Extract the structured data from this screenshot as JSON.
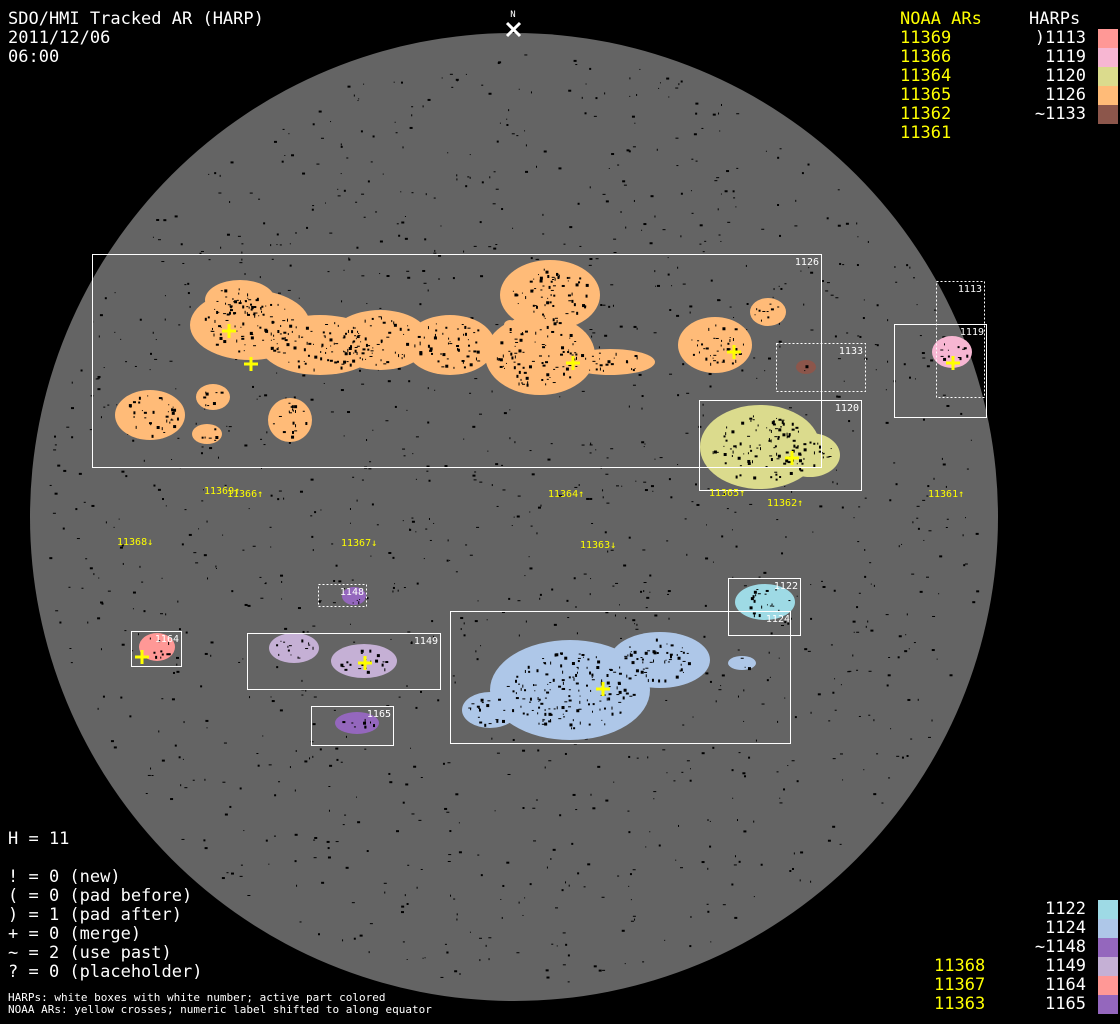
{
  "title": "SDO/HMI Tracked AR (HARP)",
  "date": "2011/12/06",
  "time": "06:00",
  "north_label": "N",
  "legend_headers": {
    "noaa": "NOAA ARs",
    "harps": "HARPs"
  },
  "legend_top": {
    "noaa": [
      "11369",
      "11366",
      "11364",
      "11365",
      "11362",
      "11361"
    ],
    "harps": [
      {
        "label": ")1113",
        "color": "#ff9896"
      },
      {
        "label": "1119",
        "color": "#f7b6d2"
      },
      {
        "label": "1120",
        "color": "#dbdb8d"
      },
      {
        "label": "1126",
        "color": "#ffbb78"
      },
      {
        "label": "~1133",
        "color": "#8c564b"
      }
    ]
  },
  "legend_bottom": {
    "noaa": [
      "11368",
      "11367",
      "11363"
    ],
    "harps": [
      {
        "label": "1122",
        "color": "#9edae5"
      },
      {
        "label": "1124",
        "color": "#aec7e8"
      },
      {
        "label": "~1148",
        "color": "#9467bd"
      },
      {
        "label": "1149",
        "color": "#c5b0d5"
      },
      {
        "label": "1164",
        "color": "#ff9896"
      },
      {
        "label": "1165",
        "color": "#9467bd"
      }
    ]
  },
  "stats": {
    "h": "H = 11",
    "lines": [
      "! = 0 (new)",
      "( = 0 (pad before)",
      ") = 1 (pad after)",
      "+ = 0 (merge)",
      "~ = 2 (use past)",
      "? = 0 (placeholder)"
    ]
  },
  "footnotes": [
    "HARPs: white boxes with white number; active part colored",
    "NOAA ARs: yellow crosses; numeric label shifted to along equator"
  ],
  "harp_boxes": [
    "1126",
    "1113",
    "1119",
    "1133",
    "1120",
    "1122",
    "1124",
    "1148",
    "1164",
    "1149",
    "1165"
  ],
  "noaa_markers": [
    "11369↑",
    "11366↑",
    "11364↑",
    "11365↑",
    "11362↑",
    "11361↑",
    "11368↓",
    "11367↓",
    "11363↓"
  ],
  "colors": {
    "disk": "#646464",
    "background": "#000000",
    "noaa": "#ffff00",
    "harp_box": "#ffffff"
  }
}
